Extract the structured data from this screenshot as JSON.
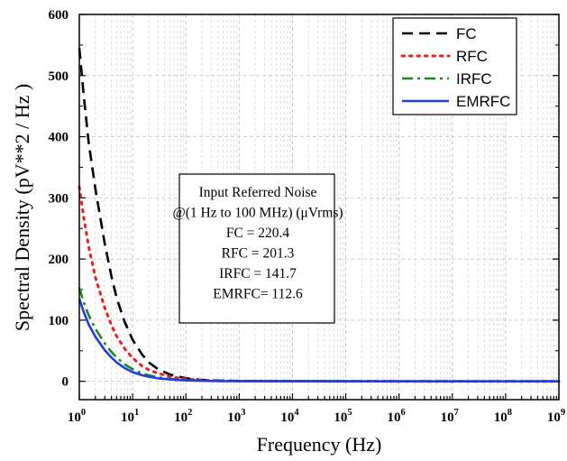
{
  "chart_data": {
    "type": "line",
    "xlabel": "Frequency (Hz)",
    "ylabel": "Spectral Density (pV**2 / Hz )",
    "x_scale": "log",
    "xlim": [
      1,
      1000000000
    ],
    "ylim": [
      -30,
      600
    ],
    "x_ticks": [
      {
        "base": "10",
        "exp": "0"
      },
      {
        "base": "10",
        "exp": "1"
      },
      {
        "base": "10",
        "exp": "2"
      },
      {
        "base": "10",
        "exp": "3"
      },
      {
        "base": "10",
        "exp": "4"
      },
      {
        "base": "10",
        "exp": "5"
      },
      {
        "base": "10",
        "exp": "6"
      },
      {
        "base": "10",
        "exp": "7"
      },
      {
        "base": "10",
        "exp": "8"
      },
      {
        "base": "10",
        "exp": "9"
      }
    ],
    "y_ticks": [
      "0",
      "100",
      "200",
      "300",
      "400",
      "500",
      "600"
    ],
    "grid": true,
    "legend_position": "top-right",
    "series": [
      {
        "name": "FC",
        "color": "#000000",
        "dash": "dashed",
        "x": [
          1,
          1.2,
          1.5,
          2,
          3,
          4,
          5,
          7,
          10,
          15,
          20,
          30,
          50,
          70,
          100,
          150,
          200,
          300,
          500,
          1000,
          10000,
          100000,
          1000000,
          10000000,
          100000000,
          1000000000
        ],
        "y": [
          545,
          470,
          390,
          315,
          225,
          172,
          137,
          98,
          68,
          44,
          31,
          20,
          11,
          8,
          5,
          3.5,
          2.5,
          1.5,
          1,
          0.5,
          0.2,
          0.1,
          0,
          0,
          0,
          0
        ]
      },
      {
        "name": "RFC",
        "color": "#e8211c",
        "dash": "dotted",
        "x": [
          1,
          1.2,
          1.5,
          2,
          3,
          4,
          5,
          7,
          10,
          15,
          20,
          30,
          50,
          70,
          100,
          150,
          200,
          300,
          500,
          1000,
          10000,
          100000,
          1000000,
          10000000,
          100000000,
          1000000000
        ],
        "y": [
          318,
          270,
          220,
          170,
          120,
          92,
          74,
          54,
          38,
          25,
          19,
          13,
          8,
          5.5,
          4,
          3,
          2,
          1.5,
          1,
          0.5,
          0.2,
          0.1,
          0,
          0,
          0,
          0
        ]
      },
      {
        "name": "IRFC",
        "color": "#1b8a1b",
        "dash": "dashdot",
        "x": [
          1,
          1.2,
          1.5,
          2,
          3,
          4,
          5,
          7,
          10,
          15,
          20,
          30,
          50,
          70,
          100,
          150,
          200,
          300,
          500,
          1000,
          10000,
          100000,
          1000000,
          10000000,
          100000000,
          1000000000
        ],
        "y": [
          153,
          130,
          108,
          86,
          62,
          48,
          39,
          28,
          20,
          13,
          10,
          6.5,
          4,
          3,
          2,
          1.5,
          1,
          0.8,
          0.5,
          0.3,
          0.1,
          0,
          0,
          0,
          0,
          0
        ]
      },
      {
        "name": "EMRFC",
        "color": "#1f3ee0",
        "dash": "solid",
        "x": [
          1,
          1.2,
          1.5,
          2,
          3,
          4,
          5,
          7,
          10,
          15,
          20,
          30,
          50,
          70,
          100,
          150,
          200,
          300,
          500,
          1000,
          10000,
          100000,
          1000000,
          10000000,
          100000000,
          1000000000
        ],
        "y": [
          135,
          114,
          93,
          73,
          51,
          39,
          31,
          22,
          15,
          10,
          7.5,
          5,
          3,
          2.2,
          1.5,
          1,
          0.8,
          0.5,
          0.3,
          0.2,
          0.1,
          0,
          0,
          0,
          0,
          0
        ]
      }
    ],
    "annotation": {
      "lines": [
        "Input Referred Noise",
        "@(1 Hz to 100 MHz) (μVrms)",
        "FC  = 220.4",
        "RFC = 201.3",
        "IRFC = 141.7",
        "EMRFC= 112.6"
      ]
    }
  }
}
